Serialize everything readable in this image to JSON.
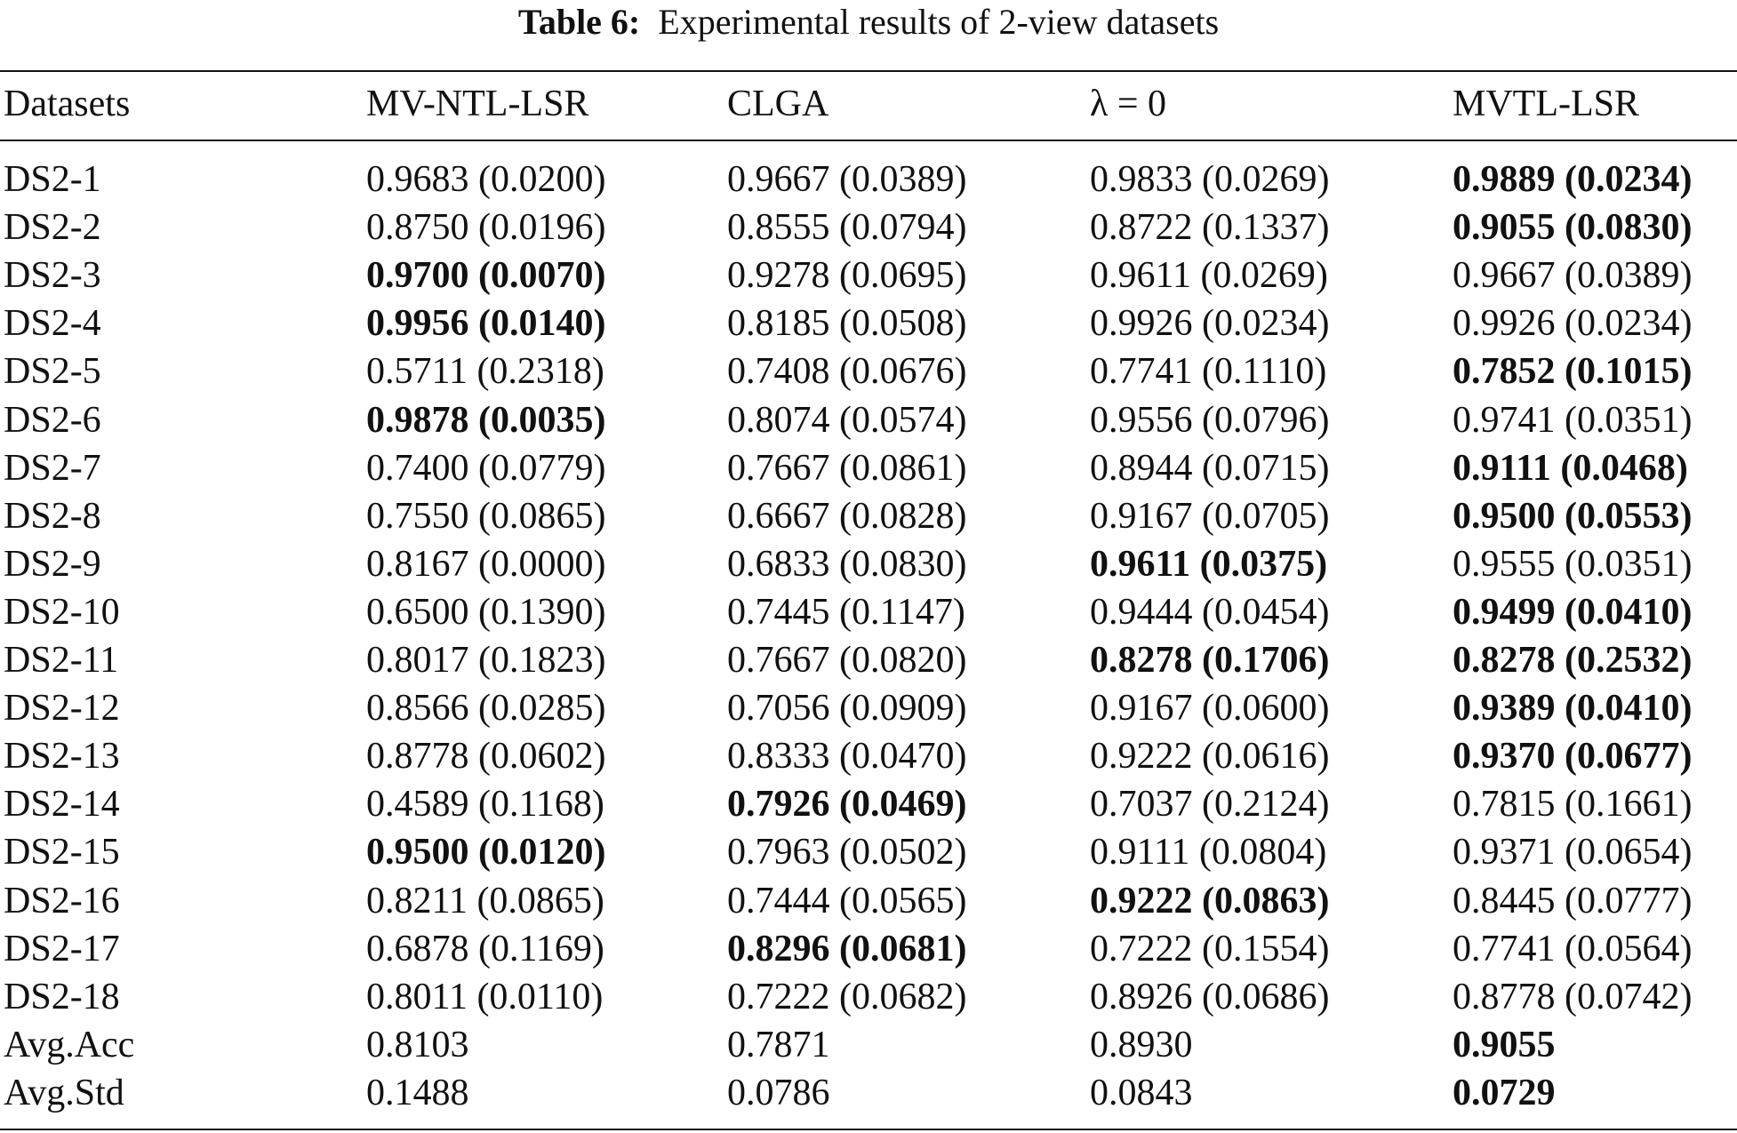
{
  "caption": {
    "label": "Table 6:",
    "text": "Experimental results of 2-view datasets"
  },
  "columns": [
    "Datasets",
    "MV-NTL-LSR",
    "CLGA",
    "λ = 0",
    "MVTL-LSR"
  ],
  "rows": [
    {
      "name": "DS2-1",
      "cells": [
        {
          "v": "0.9683 (0.0200)",
          "b": false
        },
        {
          "v": "0.9667 (0.0389)",
          "b": false
        },
        {
          "v": "0.9833 (0.0269)",
          "b": false
        },
        {
          "v": "0.9889 (0.0234)",
          "b": true
        }
      ]
    },
    {
      "name": "DS2-2",
      "cells": [
        {
          "v": "0.8750 (0.0196)",
          "b": false
        },
        {
          "v": "0.8555 (0.0794)",
          "b": false
        },
        {
          "v": "0.8722 (0.1337)",
          "b": false
        },
        {
          "v": "0.9055 (0.0830)",
          "b": true
        }
      ]
    },
    {
      "name": "DS2-3",
      "cells": [
        {
          "v": "0.9700 (0.0070)",
          "b": true
        },
        {
          "v": "0.9278 (0.0695)",
          "b": false
        },
        {
          "v": "0.9611 (0.0269)",
          "b": false
        },
        {
          "v": "0.9667 (0.0389)",
          "b": false
        }
      ]
    },
    {
      "name": "DS2-4",
      "cells": [
        {
          "v": "0.9956 (0.0140)",
          "b": true
        },
        {
          "v": "0.8185 (0.0508)",
          "b": false
        },
        {
          "v": "0.9926 (0.0234)",
          "b": false
        },
        {
          "v": "0.9926 (0.0234)",
          "b": false
        }
      ]
    },
    {
      "name": "DS2-5",
      "cells": [
        {
          "v": "0.5711 (0.2318)",
          "b": false
        },
        {
          "v": "0.7408 (0.0676)",
          "b": false
        },
        {
          "v": "0.7741 (0.1110)",
          "b": false
        },
        {
          "v": "0.7852 (0.1015)",
          "b": true
        }
      ]
    },
    {
      "name": "DS2-6",
      "cells": [
        {
          "v": "0.9878 (0.0035)",
          "b": true
        },
        {
          "v": "0.8074 (0.0574)",
          "b": false
        },
        {
          "v": "0.9556 (0.0796)",
          "b": false
        },
        {
          "v": "0.9741 (0.0351)",
          "b": false
        }
      ]
    },
    {
      "name": "DS2-7",
      "cells": [
        {
          "v": "0.7400 (0.0779)",
          "b": false
        },
        {
          "v": "0.7667 (0.0861)",
          "b": false
        },
        {
          "v": "0.8944 (0.0715)",
          "b": false
        },
        {
          "v": "0.9111 (0.0468)",
          "b": true
        }
      ]
    },
    {
      "name": "DS2-8",
      "cells": [
        {
          "v": "0.7550 (0.0865)",
          "b": false
        },
        {
          "v": "0.6667 (0.0828)",
          "b": false
        },
        {
          "v": "0.9167 (0.0705)",
          "b": false
        },
        {
          "v": "0.9500 (0.0553)",
          "b": true
        }
      ]
    },
    {
      "name": "DS2-9",
      "cells": [
        {
          "v": "0.8167 (0.0000)",
          "b": false
        },
        {
          "v": "0.6833 (0.0830)",
          "b": false
        },
        {
          "v": "0.9611 (0.0375)",
          "b": true
        },
        {
          "v": "0.9555 (0.0351)",
          "b": false
        }
      ]
    },
    {
      "name": "DS2-10",
      "cells": [
        {
          "v": "0.6500 (0.1390)",
          "b": false
        },
        {
          "v": "0.7445 (0.1147)",
          "b": false
        },
        {
          "v": "0.9444 (0.0454)",
          "b": false
        },
        {
          "v": "0.9499 (0.0410)",
          "b": true
        }
      ]
    },
    {
      "name": "DS2-11",
      "cells": [
        {
          "v": "0.8017 (0.1823)",
          "b": false
        },
        {
          "v": "0.7667 (0.0820)",
          "b": false
        },
        {
          "v": "0.8278 (0.1706)",
          "b": true
        },
        {
          "v": "0.8278 (0.2532)",
          "b": true
        }
      ]
    },
    {
      "name": "DS2-12",
      "cells": [
        {
          "v": "0.8566 (0.0285)",
          "b": false
        },
        {
          "v": "0.7056 (0.0909)",
          "b": false
        },
        {
          "v": "0.9167 (0.0600)",
          "b": false
        },
        {
          "v": "0.9389 (0.0410)",
          "b": true
        }
      ]
    },
    {
      "name": "DS2-13",
      "cells": [
        {
          "v": "0.8778 (0.0602)",
          "b": false
        },
        {
          "v": "0.8333 (0.0470)",
          "b": false
        },
        {
          "v": "0.9222 (0.0616)",
          "b": false
        },
        {
          "v": "0.9370 (0.0677)",
          "b": true
        }
      ]
    },
    {
      "name": "DS2-14",
      "cells": [
        {
          "v": "0.4589 (0.1168)",
          "b": false
        },
        {
          "v": "0.7926 (0.0469)",
          "b": true
        },
        {
          "v": "0.7037 (0.2124)",
          "b": false
        },
        {
          "v": "0.7815 (0.1661)",
          "b": false
        }
      ]
    },
    {
      "name": "DS2-15",
      "cells": [
        {
          "v": "0.9500 (0.0120)",
          "b": true
        },
        {
          "v": "0.7963 (0.0502)",
          "b": false
        },
        {
          "v": "0.9111 (0.0804)",
          "b": false
        },
        {
          "v": "0.9371 (0.0654)",
          "b": false
        }
      ]
    },
    {
      "name": "DS2-16",
      "cells": [
        {
          "v": "0.8211 (0.0865)",
          "b": false
        },
        {
          "v": "0.7444 (0.0565)",
          "b": false
        },
        {
          "v": "0.9222 (0.0863)",
          "b": true
        },
        {
          "v": "0.8445 (0.0777)",
          "b": false
        }
      ]
    },
    {
      "name": "DS2-17",
      "cells": [
        {
          "v": "0.6878 (0.1169)",
          "b": false
        },
        {
          "v": "0.8296 (0.0681)",
          "b": true
        },
        {
          "v": "0.7222 (0.1554)",
          "b": false
        },
        {
          "v": "0.7741 (0.0564)",
          "b": false
        }
      ]
    },
    {
      "name": "DS2-18",
      "cells": [
        {
          "v": "0.8011 (0.0110)",
          "b": false
        },
        {
          "v": "0.7222 (0.0682)",
          "b": false
        },
        {
          "v": "0.8926 (0.0686)",
          "b": false
        },
        {
          "v": "0.8778 (0.0742)",
          "b": false
        }
      ]
    },
    {
      "name": "Avg.Acc",
      "cells": [
        {
          "v": "0.8103",
          "b": false
        },
        {
          "v": "0.7871",
          "b": false
        },
        {
          "v": "0.8930",
          "b": false
        },
        {
          "v": "0.9055",
          "b": true
        }
      ]
    },
    {
      "name": "Avg.Std",
      "cells": [
        {
          "v": "0.1488",
          "b": false
        },
        {
          "v": "0.0786",
          "b": false
        },
        {
          "v": "0.0843",
          "b": false
        },
        {
          "v": "0.0729",
          "b": true
        }
      ]
    }
  ]
}
